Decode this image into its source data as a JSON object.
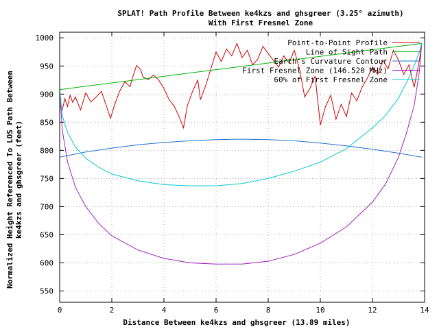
{
  "chart_data": {
    "type": "line",
    "title": "SPLAT! Path Profile Between ke4kzs and ghsgreer (3.25° azimuth)",
    "subtitle": "With First Fresnel Zone",
    "xlabel": "Distance Between ke4kzs and ghsgreer (13.89 miles)",
    "ylabel_line1": "Normalized Height Referenced To LOS Path Between",
    "ylabel_line2": "ke4kzs and ghsgreer (feet)",
    "xlim": [
      0,
      14
    ],
    "ylim": [
      530,
      1010
    ],
    "xticks": [
      0,
      2,
      4,
      6,
      8,
      10,
      12,
      14
    ],
    "yticks": [
      550,
      600,
      650,
      700,
      750,
      800,
      850,
      900,
      950,
      1000
    ],
    "grid": true,
    "legend_position": "top-right",
    "series": [
      {
        "name": "Point-to-Point Profile",
        "color": "#cc0000",
        "x": [
          0,
          0.1,
          0.2,
          0.3,
          0.4,
          0.5,
          0.6,
          0.8,
          1.0,
          1.2,
          1.4,
          1.6,
          1.8,
          1.95,
          2.1,
          2.3,
          2.5,
          2.7,
          2.8,
          2.95,
          3.1,
          3.2,
          3.4,
          3.6,
          3.8,
          4.0,
          4.2,
          4.4,
          4.6,
          4.75,
          4.9,
          5.1,
          5.3,
          5.4,
          5.6,
          5.8,
          6.0,
          6.2,
          6.4,
          6.6,
          6.8,
          7.0,
          7.2,
          7.4,
          7.6,
          7.8,
          8.0,
          8.2,
          8.4,
          8.6,
          8.8,
          9.0,
          9.2,
          9.4,
          9.6,
          9.8,
          10.0,
          10.2,
          10.4,
          10.6,
          10.8,
          11.0,
          11.2,
          11.4,
          11.6,
          11.8,
          12.0,
          12.2,
          12.4,
          12.6,
          12.8,
          13.0,
          13.2,
          13.4,
          13.6,
          13.8,
          13.89
        ],
        "y": [
          880,
          872,
          892,
          878,
          898,
          885,
          895,
          872,
          902,
          886,
          895,
          905,
          878,
          857,
          880,
          905,
          922,
          913,
          930,
          951,
          944,
          930,
          926,
          934,
          925,
          910,
          890,
          878,
          858,
          840,
          880,
          905,
          925,
          890,
          915,
          945,
          975,
          958,
          980,
          968,
          990,
          965,
          978,
          952,
          962,
          985,
          972,
          960,
          948,
          968,
          955,
          978,
          945,
          895,
          910,
          932,
          845,
          878,
          898,
          855,
          882,
          860,
          902,
          888,
          912,
          928,
          948,
          935,
          960,
          945,
          978,
          960,
          935,
          952,
          912,
          960,
          990
        ]
      },
      {
        "name": "Line of Sight Path",
        "color": "#00b000",
        "x": [
          0,
          13.89
        ],
        "y": [
          908,
          990
        ]
      },
      {
        "name": "Earth's Curvature Contour",
        "color": "#1f6fd0",
        "x": [
          0,
          1,
          2,
          3,
          4,
          5,
          6,
          6.945,
          8,
          9,
          10,
          11,
          12,
          13,
          13.89
        ],
        "y": [
          788,
          797,
          804,
          810,
          814,
          817,
          819,
          820,
          819,
          817,
          813,
          808,
          802,
          795,
          788
        ]
      },
      {
        "name": "First Fresnel Zone (146.520 MHz)",
        "color": "#a020c0",
        "x": [
          0,
          0.1,
          0.3,
          0.6,
          1.0,
          1.5,
          2.0,
          3.0,
          4.0,
          5.0,
          6.0,
          7.0,
          8.0,
          9.0,
          10.0,
          11.0,
          12.0,
          12.5,
          13.0,
          13.3,
          13.6,
          13.8,
          13.89
        ],
        "y": [
          908,
          836,
          780,
          735,
          700,
          670,
          648,
          623,
          608,
          600,
          598,
          598,
          603,
          615,
          635,
          664,
          708,
          740,
          788,
          830,
          880,
          940,
          990
        ]
      },
      {
        "name": "60% of First Fresnel Zone",
        "color": "#00c8d0",
        "x": [
          0,
          0.1,
          0.3,
          0.6,
          1.0,
          1.5,
          2.0,
          3.0,
          4.0,
          5.0,
          6.0,
          7.0,
          8.0,
          9.0,
          10.0,
          11.0,
          12.0,
          12.5,
          13.0,
          13.3,
          13.6,
          13.8,
          13.89
        ],
        "y": [
          908,
          862,
          832,
          806,
          786,
          770,
          758,
          746,
          739,
          737,
          737,
          741,
          750,
          763,
          779,
          803,
          840,
          862,
          893,
          920,
          950,
          975,
          990
        ]
      }
    ]
  }
}
